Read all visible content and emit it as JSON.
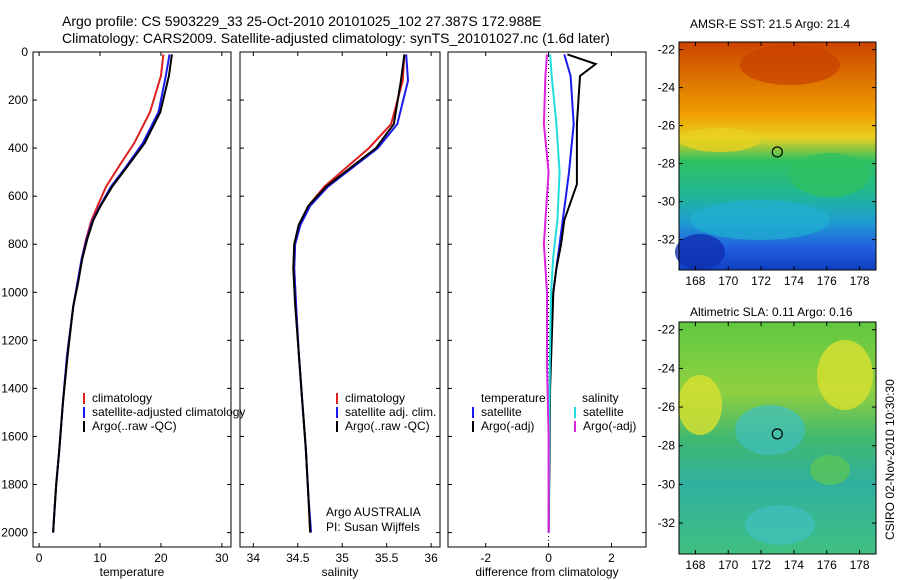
{
  "title_line1": "Argo profile: CS 5903229_33 25-Oct-2010 20101025_102 27.387S 172.988E",
  "title_line2": "Climatology: CARS2009. Satellite-adjusted climatology: synTS_20101027.nc (1.6d later)",
  "side_label": "CSIRO 02-Nov-2010 10:30:30",
  "credit_line1": "Argo AUSTRALIA",
  "credit_line2": "PI: Susan Wijffels",
  "colors": {
    "climatology": "#e02020",
    "satellite": "#1a1aee",
    "argo": "#000000",
    "sat_salinity": "#22dddd",
    "argo_salinity": "#dd22dd"
  },
  "chart_data": [
    {
      "type": "line",
      "name": "temperature",
      "xlabel": "temperature",
      "xlim": [
        -1,
        31.5
      ],
      "ylim": [
        0,
        2060
      ],
      "y_reversed": true,
      "xticks": [
        0,
        10,
        20,
        30
      ],
      "yticks": [
        0,
        200,
        400,
        600,
        800,
        1000,
        1200,
        1400,
        1600,
        1800,
        2000
      ],
      "legend": [
        "climatology",
        "satellite-adjusted climatology",
        "Argo(..raw -QC)"
      ],
      "series": [
        {
          "name": "climatology",
          "color_key": "climatology",
          "x": [
            20.4,
            20.0,
            18.2,
            15.6,
            13.0,
            11.0,
            9.6,
            8.6,
            7.7,
            7.0,
            6.3,
            5.6,
            4.6,
            3.9,
            3.3,
            2.8,
            2.5,
            2.3
          ],
          "y": [
            10,
            100,
            250,
            380,
            480,
            560,
            640,
            700,
            780,
            860,
            960,
            1060,
            1260,
            1460,
            1660,
            1800,
            1920,
            2000
          ]
        },
        {
          "name": "satellite-adjusted climatology",
          "color_key": "satellite",
          "x": [
            21.4,
            20.8,
            19.6,
            17.0,
            14.2,
            11.8,
            10.0,
            8.8,
            7.8,
            7.0,
            6.3,
            5.6,
            4.6,
            3.9,
            3.3,
            2.8,
            2.5,
            2.3
          ],
          "y": [
            10,
            100,
            250,
            380,
            480,
            560,
            640,
            700,
            780,
            860,
            960,
            1060,
            1260,
            1460,
            1660,
            1800,
            1920,
            2000
          ]
        },
        {
          "name": "Argo(..raw -QC)",
          "color_key": "argo",
          "x": [
            21.8,
            21.3,
            19.9,
            17.3,
            14.4,
            12.0,
            10.1,
            8.9,
            7.9,
            7.1,
            6.4,
            5.6,
            4.7,
            3.9,
            3.3,
            2.8,
            2.5,
            2.3
          ],
          "y": [
            10,
            100,
            250,
            380,
            480,
            560,
            640,
            700,
            780,
            860,
            960,
            1060,
            1260,
            1460,
            1660,
            1800,
            1920,
            2000
          ]
        }
      ]
    },
    {
      "type": "line",
      "name": "salinity",
      "xlabel": "salinity",
      "xlim": [
        33.85,
        36.1
      ],
      "ylim": [
        0,
        2060
      ],
      "y_reversed": true,
      "xticks": [
        34,
        34.5,
        35,
        35.5,
        36
      ],
      "legend": [
        "climatology",
        "satellite adj. clim.",
        "Argo(..raw -QC)"
      ],
      "series": [
        {
          "name": "climatology",
          "color_key": "climatology",
          "x": [
            35.7,
            35.68,
            35.55,
            35.3,
            35.05,
            34.8,
            34.62,
            34.52,
            34.47,
            34.46,
            34.48,
            34.51,
            34.55,
            34.59,
            34.62,
            34.64
          ],
          "y": [
            10,
            120,
            300,
            400,
            480,
            560,
            640,
            720,
            800,
            900,
            1050,
            1250,
            1450,
            1650,
            1850,
            2000
          ]
        },
        {
          "name": "satellite adj. clim.",
          "color_key": "satellite",
          "x": [
            35.72,
            35.74,
            35.62,
            35.4,
            35.12,
            34.84,
            34.64,
            34.53,
            34.47,
            34.46,
            34.48,
            34.51,
            34.55,
            34.59,
            34.62,
            34.65
          ],
          "y": [
            10,
            120,
            300,
            400,
            480,
            560,
            640,
            720,
            800,
            900,
            1050,
            1250,
            1450,
            1650,
            1850,
            2000
          ]
        },
        {
          "name": "Argo(..raw -QC)",
          "color_key": "argo",
          "x": [
            35.7,
            35.66,
            35.58,
            35.38,
            35.1,
            34.82,
            34.62,
            34.51,
            34.46,
            34.45,
            34.47,
            34.51,
            34.55,
            34.59,
            34.62,
            34.64
          ],
          "y": [
            10,
            120,
            300,
            400,
            480,
            560,
            640,
            720,
            800,
            900,
            1050,
            1250,
            1450,
            1650,
            1850,
            2000
          ]
        }
      ]
    },
    {
      "type": "line",
      "name": "difference",
      "xlabel": "difference from climatology",
      "xlim": [
        -3.2,
        3.1
      ],
      "ylim": [
        0,
        2060
      ],
      "y_reversed": true,
      "xticks": [
        -2,
        0,
        2
      ],
      "legend_left_title": "temperature",
      "legend_right_title": "salinity",
      "legend_left": [
        "satellite",
        "Argo(-adj)"
      ],
      "legend_right": [
        "satellite",
        "Argo(-adj)"
      ],
      "series": [
        {
          "name": "temperature satellite",
          "color_key": "satellite",
          "x": [
            0.5,
            0.7,
            0.8,
            0.65,
            0.55,
            0.45,
            0.35,
            0.25,
            0.15,
            0.08,
            0.04,
            0.02,
            0.0
          ],
          "y": [
            10,
            100,
            300,
            500,
            600,
            700,
            800,
            900,
            1000,
            1200,
            1400,
            1700,
            2000
          ]
        },
        {
          "name": "temperature Argo(-adj)",
          "color_key": "argo",
          "x": [
            0.6,
            1.5,
            1.0,
            0.9,
            0.9,
            0.5,
            0.4,
            0.25,
            0.15,
            0.1,
            0.05,
            0.03,
            0.0
          ],
          "y": [
            10,
            50,
            100,
            300,
            550,
            700,
            800,
            900,
            1000,
            1200,
            1400,
            1700,
            2000
          ]
        },
        {
          "name": "salinity satellite",
          "color_key": "sat_salinity",
          "x": [
            0.05,
            0.1,
            0.25,
            0.35,
            0.28,
            0.15,
            0.08,
            0.04,
            0.02,
            0.0
          ],
          "y": [
            10,
            100,
            300,
            500,
            700,
            850,
            1000,
            1300,
            1600,
            2000
          ]
        },
        {
          "name": "salinity Argo(-adj)",
          "color_key": "argo_salinity",
          "x": [
            -0.05,
            -0.1,
            -0.15,
            0.0,
            -0.1,
            -0.15,
            -0.05,
            -0.05,
            0.0,
            0.0
          ],
          "y": [
            10,
            100,
            300,
            500,
            700,
            800,
            1000,
            1300,
            1600,
            2000
          ]
        }
      ]
    },
    {
      "type": "heatmap",
      "name": "sst_map",
      "title": "AMSR-E SST: 21.5 Argo: 21.4",
      "xlim": [
        167,
        179
      ],
      "ylim": [
        -33.6,
        -21.6
      ],
      "xticks": [
        168,
        170,
        172,
        174,
        176,
        178
      ],
      "yticks": [
        -22,
        -24,
        -26,
        -28,
        -30,
        -32
      ],
      "marker": {
        "lon": 172.988,
        "lat": -27.387
      }
    },
    {
      "type": "heatmap",
      "name": "sla_map",
      "title": "Altimetric SLA: 0.11 Argo: 0.16",
      "xlim": [
        167,
        179
      ],
      "ylim": [
        -33.6,
        -21.6
      ],
      "xticks": [
        168,
        170,
        172,
        174,
        176,
        178
      ],
      "yticks": [
        -22,
        -24,
        -26,
        -28,
        -30,
        -32
      ],
      "marker": {
        "lon": 172.988,
        "lat": -27.387
      }
    }
  ]
}
